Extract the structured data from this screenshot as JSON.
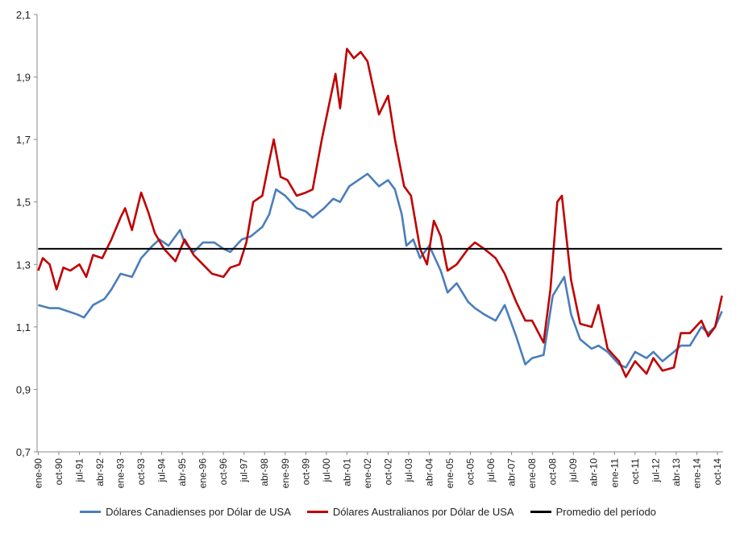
{
  "chart_data": {
    "type": "line",
    "title": "",
    "xlabel": "",
    "ylabel": "",
    "ylim": [
      0.7,
      2.1
    ],
    "yticks": [
      "0,7",
      "0,9",
      "1,1",
      "1,3",
      "1,5",
      "1,7",
      "1,9",
      "2,1"
    ],
    "xticks": [
      "ene-90",
      "oct-90",
      "jul-91",
      "abr-92",
      "ene-93",
      "oct-93",
      "jul-94",
      "abr-95",
      "ene-96",
      "oct-96",
      "jul-97",
      "abr-98",
      "ene-99",
      "oct-99",
      "jul-00",
      "abr-01",
      "ene-02",
      "oct-02",
      "jul-03",
      "abr-04",
      "ene-05",
      "oct-05",
      "jul-06",
      "abr-07",
      "ene-08",
      "oct-08",
      "jul-09",
      "abr-10",
      "ene-11",
      "oct-11",
      "jul-12",
      "abr-13",
      "ene-14",
      "oct-14"
    ],
    "x_start": "1990-01",
    "x_end": "2014-12",
    "grid": false,
    "legend_position": "bottom",
    "series": [
      {
        "name": "Dólares Canadienses por Dólar de USA",
        "color": "#4a7ebb",
        "points": [
          [
            "1990-01",
            1.17
          ],
          [
            "1990-06",
            1.16
          ],
          [
            "1990-10",
            1.16
          ],
          [
            "1991-06",
            1.14
          ],
          [
            "1991-09",
            1.13
          ],
          [
            "1992-01",
            1.17
          ],
          [
            "1992-06",
            1.19
          ],
          [
            "1992-09",
            1.22
          ],
          [
            "1993-01",
            1.27
          ],
          [
            "1993-06",
            1.26
          ],
          [
            "1993-10",
            1.32
          ],
          [
            "1994-03",
            1.36
          ],
          [
            "1994-06",
            1.38
          ],
          [
            "1994-10",
            1.36
          ],
          [
            "1995-03",
            1.41
          ],
          [
            "1995-05",
            1.37
          ],
          [
            "1995-09",
            1.34
          ],
          [
            "1996-01",
            1.37
          ],
          [
            "1996-06",
            1.37
          ],
          [
            "1996-10",
            1.35
          ],
          [
            "1997-01",
            1.34
          ],
          [
            "1997-06",
            1.38
          ],
          [
            "1997-10",
            1.39
          ],
          [
            "1998-03",
            1.42
          ],
          [
            "1998-06",
            1.46
          ],
          [
            "1998-09",
            1.54
          ],
          [
            "1999-01",
            1.52
          ],
          [
            "1999-06",
            1.48
          ],
          [
            "1999-10",
            1.47
          ],
          [
            "2000-01",
            1.45
          ],
          [
            "2000-06",
            1.48
          ],
          [
            "2000-10",
            1.51
          ],
          [
            "2001-01",
            1.5
          ],
          [
            "2001-05",
            1.55
          ],
          [
            "2001-09",
            1.57
          ],
          [
            "2002-01",
            1.59
          ],
          [
            "2002-06",
            1.55
          ],
          [
            "2002-10",
            1.57
          ],
          [
            "2003-01",
            1.54
          ],
          [
            "2003-04",
            1.46
          ],
          [
            "2003-06",
            1.36
          ],
          [
            "2003-09",
            1.38
          ],
          [
            "2003-12",
            1.32
          ],
          [
            "2004-04",
            1.36
          ],
          [
            "2004-09",
            1.28
          ],
          [
            "2004-12",
            1.21
          ],
          [
            "2005-04",
            1.24
          ],
          [
            "2005-09",
            1.18
          ],
          [
            "2005-12",
            1.16
          ],
          [
            "2006-04",
            1.14
          ],
          [
            "2006-09",
            1.12
          ],
          [
            "2007-01",
            1.17
          ],
          [
            "2007-06",
            1.07
          ],
          [
            "2007-10",
            0.98
          ],
          [
            "2008-01",
            1.0
          ],
          [
            "2008-06",
            1.01
          ],
          [
            "2008-10",
            1.2
          ],
          [
            "2009-03",
            1.26
          ],
          [
            "2009-06",
            1.14
          ],
          [
            "2009-10",
            1.06
          ],
          [
            "2010-03",
            1.03
          ],
          [
            "2010-06",
            1.04
          ],
          [
            "2010-10",
            1.02
          ],
          [
            "2011-03",
            0.98
          ],
          [
            "2011-06",
            0.97
          ],
          [
            "2011-10",
            1.02
          ],
          [
            "2012-03",
            1.0
          ],
          [
            "2012-06",
            1.02
          ],
          [
            "2012-10",
            0.99
          ],
          [
            "2013-03",
            1.02
          ],
          [
            "2013-06",
            1.04
          ],
          [
            "2013-10",
            1.04
          ],
          [
            "2014-03",
            1.1
          ],
          [
            "2014-06",
            1.08
          ],
          [
            "2014-09",
            1.1
          ],
          [
            "2014-12",
            1.15
          ]
        ]
      },
      {
        "name": "Dólares Australianos por Dólar de USA",
        "color": "#c00000",
        "points": [
          [
            "1990-01",
            1.28
          ],
          [
            "1990-03",
            1.32
          ],
          [
            "1990-06",
            1.3
          ],
          [
            "1990-09",
            1.22
          ],
          [
            "1990-12",
            1.29
          ],
          [
            "1991-03",
            1.28
          ],
          [
            "1991-07",
            1.3
          ],
          [
            "1991-10",
            1.26
          ],
          [
            "1992-01",
            1.33
          ],
          [
            "1992-05",
            1.32
          ],
          [
            "1992-09",
            1.38
          ],
          [
            "1993-01",
            1.45
          ],
          [
            "1993-03",
            1.48
          ],
          [
            "1993-06",
            1.41
          ],
          [
            "1993-10",
            1.53
          ],
          [
            "1994-01",
            1.47
          ],
          [
            "1994-04",
            1.4
          ],
          [
            "1994-08",
            1.35
          ],
          [
            "1995-01",
            1.31
          ],
          [
            "1995-05",
            1.38
          ],
          [
            "1995-09",
            1.33
          ],
          [
            "1996-01",
            1.3
          ],
          [
            "1996-05",
            1.27
          ],
          [
            "1996-10",
            1.26
          ],
          [
            "1997-01",
            1.29
          ],
          [
            "1997-05",
            1.3
          ],
          [
            "1997-08",
            1.37
          ],
          [
            "1997-11",
            1.5
          ],
          [
            "1998-03",
            1.52
          ],
          [
            "1998-06",
            1.63
          ],
          [
            "1998-08",
            1.7
          ],
          [
            "1998-11",
            1.58
          ],
          [
            "1999-02",
            1.57
          ],
          [
            "1999-06",
            1.52
          ],
          [
            "1999-10",
            1.53
          ],
          [
            "2000-01",
            1.54
          ],
          [
            "2000-05",
            1.7
          ],
          [
            "2000-09",
            1.84
          ],
          [
            "2000-11",
            1.91
          ],
          [
            "2001-01",
            1.8
          ],
          [
            "2001-04",
            1.99
          ],
          [
            "2001-07",
            1.96
          ],
          [
            "2001-10",
            1.98
          ],
          [
            "2002-01",
            1.95
          ],
          [
            "2002-06",
            1.78
          ],
          [
            "2002-10",
            1.84
          ],
          [
            "2003-01",
            1.7
          ],
          [
            "2003-05",
            1.55
          ],
          [
            "2003-08",
            1.52
          ],
          [
            "2003-12",
            1.35
          ],
          [
            "2004-03",
            1.3
          ],
          [
            "2004-06",
            1.44
          ],
          [
            "2004-09",
            1.39
          ],
          [
            "2004-12",
            1.28
          ],
          [
            "2005-04",
            1.3
          ],
          [
            "2005-09",
            1.35
          ],
          [
            "2005-12",
            1.37
          ],
          [
            "2006-04",
            1.35
          ],
          [
            "2006-09",
            1.32
          ],
          [
            "2007-01",
            1.27
          ],
          [
            "2007-06",
            1.18
          ],
          [
            "2007-10",
            1.12
          ],
          [
            "2008-01",
            1.12
          ],
          [
            "2008-06",
            1.05
          ],
          [
            "2008-09",
            1.22
          ],
          [
            "2008-12",
            1.5
          ],
          [
            "2009-02",
            1.52
          ],
          [
            "2009-06",
            1.25
          ],
          [
            "2009-10",
            1.11
          ],
          [
            "2010-03",
            1.1
          ],
          [
            "2010-06",
            1.17
          ],
          [
            "2010-10",
            1.03
          ],
          [
            "2011-03",
            0.99
          ],
          [
            "2011-06",
            0.94
          ],
          [
            "2011-10",
            0.99
          ],
          [
            "2012-03",
            0.95
          ],
          [
            "2012-06",
            1.0
          ],
          [
            "2012-10",
            0.96
          ],
          [
            "2013-03",
            0.97
          ],
          [
            "2013-06",
            1.08
          ],
          [
            "2013-10",
            1.08
          ],
          [
            "2014-03",
            1.12
          ],
          [
            "2014-06",
            1.07
          ],
          [
            "2014-09",
            1.1
          ],
          [
            "2014-12",
            1.2
          ]
        ]
      },
      {
        "name": "Promedio del período",
        "color": "#000000",
        "points": [
          [
            "1990-01",
            1.35
          ],
          [
            "2014-12",
            1.35
          ]
        ]
      }
    ]
  }
}
